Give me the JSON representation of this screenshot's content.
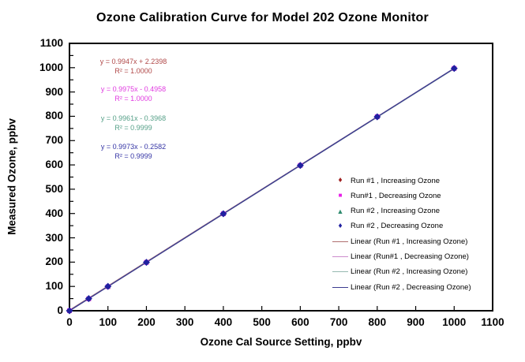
{
  "chart_data": {
    "type": "scatter",
    "title": "Ozone Calibration Curve for Model 202 Ozone Monitor",
    "xlabel": "Ozone Cal Source Setting, ppbv",
    "ylabel": "Measured Ozone, ppbv",
    "xlim": [
      0,
      1100
    ],
    "ylim": [
      0,
      1100
    ],
    "x_tick_step": 100,
    "y_tick_step": 100,
    "y_minor_tick_step": 50,
    "grid": false,
    "legend_position": "middle-right-inside-no-border",
    "x": [
      0,
      50,
      100,
      200,
      400,
      600,
      800,
      1000
    ],
    "series": [
      {
        "name": "Run #1 , Increasing Ozone",
        "marker": "diamond",
        "marker_color": "#a02020",
        "values": [
          2,
          52,
          102,
          201,
          400,
          599,
          798,
          997
        ],
        "trendline": {
          "label": "Linear (Run #1 , Increasing Ozone)",
          "equation": "y = 0.9947x + 2.2398",
          "r2": "R² = 1.0000",
          "slope": 0.9947,
          "intercept": 2.2398,
          "line_color": "#b07070",
          "text_color": "#b04848"
        }
      },
      {
        "name": "Run#1 , Decreasing Ozone",
        "marker": "square",
        "marker_color": "#e820e8",
        "values": [
          0,
          49,
          99,
          199,
          399,
          598,
          798,
          997
        ],
        "trendline": {
          "label": "Linear (Run#1 , Decreasing Ozone)",
          "equation": "y = 0.9975x - 0.4958",
          "r2": "R² = 1.0000",
          "slope": 0.9975,
          "intercept": -0.4958,
          "line_color": "#cc8ccc",
          "text_color": "#e03ce0"
        }
      },
      {
        "name": "Run #2 , Increasing Ozone",
        "marker": "triangle",
        "marker_color": "#2e8b6e",
        "values": [
          0,
          49,
          99,
          199,
          398,
          597,
          797,
          996
        ],
        "trendline": {
          "label": "Linear (Run #2 , Increasing Ozone)",
          "equation": "y = 0.9961x - 0.3968",
          "r2": "R² = 0.9999",
          "slope": 0.9961,
          "intercept": -0.3968,
          "line_color": "#96b8b0",
          "text_color": "#56a088"
        }
      },
      {
        "name": "Run #2 , Decreasing Ozone",
        "marker": "diamond",
        "marker_color": "#2020a0",
        "values": [
          0,
          50,
          100,
          199,
          399,
          598,
          798,
          997
        ],
        "trendline": {
          "label": "Linear (Run #2 , Decreasing Ozone)",
          "equation": "y = 0.9973x - 0.2582",
          "r2": "R² = 0.9999",
          "slope": 0.9973,
          "intercept": -0.2582,
          "line_color": "#3c3c90",
          "text_color": "#3535a5"
        }
      }
    ]
  }
}
